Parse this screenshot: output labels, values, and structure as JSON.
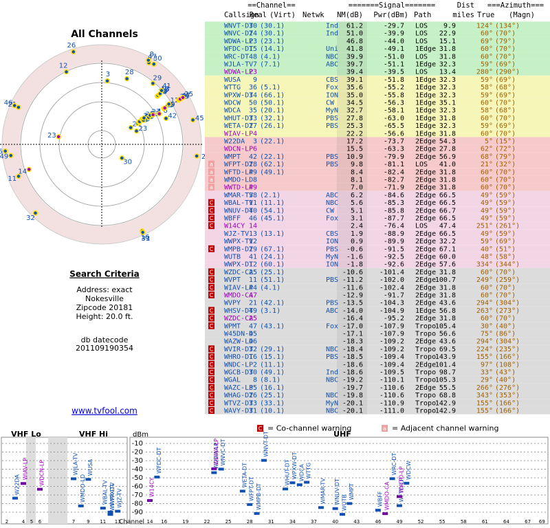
{
  "header": {
    "channel": "==Channel==",
    "signal": "=======Signal=======",
    "dist": "Dist",
    "azimuth": "===Azimuth===",
    "callsign": "Callsign",
    "real": "Real",
    "virt": "(Virt)",
    "netwk": "Netwk",
    "nm": "NM(dB)",
    "pwr": "Pwr(dBm)",
    "path": "Path",
    "miles": "miles",
    "true": "True",
    "magn": "(Magn)"
  },
  "left": {
    "title": "All Channels",
    "north": "TrueNorth",
    "n": "N",
    "criteria": "Search Criteria",
    "address": "Address: exact",
    "city": "Nokesville",
    "zip": "Zipcode 20181",
    "height": "Height: 20.0 ft.",
    "datecode_label": "db datecode",
    "datecode": "201109190354",
    "link": "www.tvfool.com"
  },
  "table": {
    "rows": [
      {
        "call": "WNVT-DT",
        "real": 30,
        "virt": "(30.1)",
        "net": "Ind",
        "nm": 61.2,
        "pwr": -29.7,
        "path": "LOS",
        "dist": 9.9,
        "az": "124°",
        "mag": "(134°)",
        "bg": "#c6f0c6",
        "fg": "#1050b0"
      },
      {
        "call": "WNVC-DT",
        "real": 24,
        "virt": "(30.1)",
        "net": "Ind",
        "nm": 51.0,
        "pwr": -39.9,
        "path": "LOS",
        "dist": 22.9,
        "az": "60°",
        "mag": "(70°)",
        "bg": "#c6f0c6",
        "fg": "#1050b0"
      },
      {
        "call": "WDWA-LP",
        "real": 23,
        "virt": "(23.1)",
        "nm": 46.8,
        "pwr": -44.0,
        "path": "LOS",
        "dist": 15.1,
        "az": "69°",
        "mag": "(79°)",
        "bg": "#c6f0c6",
        "fg": "#1050b0"
      },
      {
        "call": "WFDC-DT",
        "real": 15,
        "virt": "(14.1)",
        "net": "Uni",
        "nm": 41.8,
        "pwr": -49.1,
        "path": "1Edge",
        "dist": 31.8,
        "az": "60°",
        "mag": "(70°)",
        "bg": "#c6f0c6",
        "fg": "#1050b0"
      },
      {
        "call": "WRC-DT",
        "real": 48,
        "virt": "(4.1)",
        "net": "NBC",
        "nm": 39.9,
        "pwr": -51.0,
        "path": "LOS",
        "dist": 31.8,
        "az": "60°",
        "mag": "(70°)",
        "bg": "#c6f0c6",
        "fg": "#1050b0"
      },
      {
        "call": "WJLA-TV",
        "real": 7,
        "virt": "(7.1)",
        "net": "ABC",
        "nm": 39.7,
        "pwr": -51.1,
        "path": "1Edge",
        "dist": 32.3,
        "az": "59°",
        "mag": "(69°)",
        "bg": "#c6f0c6",
        "fg": "#1050b0"
      },
      {
        "call": "WDWA-LP",
        "real": 23,
        "nm": 39.4,
        "pwr": -39.5,
        "path": "LOS",
        "dist": 13.4,
        "az": "280°",
        "mag": "(290°)",
        "bg": "#c6f0c6",
        "fg": "#a000c0"
      },
      {
        "call": "WUSA",
        "real": 9,
        "net": "CBS",
        "nm": 39.1,
        "pwr": -51.8,
        "path": "1Edge",
        "dist": 32.3,
        "az": "59°",
        "mag": "(69°)",
        "bg": "#f6f6b8",
        "fg": "#1050b0"
      },
      {
        "call": "WTTG",
        "real": 36,
        "virt": "(5.1)",
        "net": "Fox",
        "nm": 35.6,
        "pwr": -55.2,
        "path": "1Edge",
        "dist": 32.3,
        "az": "58°",
        "mag": "(68°)",
        "bg": "#f6f6b8",
        "fg": "#1050b0"
      },
      {
        "call": "WPXW-DT",
        "real": 34,
        "virt": "(66.1)",
        "net": "ION",
        "nm": 35.0,
        "pwr": -55.8,
        "path": "1Edge",
        "dist": 32.3,
        "az": "59°",
        "mag": "(69°)",
        "bg": "#f6f6b8",
        "fg": "#1050b0"
      },
      {
        "call": "WDCW",
        "real": 50,
        "virt": "(50.1)",
        "net": "CW",
        "nm": 34.5,
        "pwr": -56.3,
        "path": "1Edge",
        "dist": 35.1,
        "az": "60°",
        "mag": "(70°)",
        "bg": "#f6f6b8",
        "fg": "#1050b0"
      },
      {
        "call": "WDCA",
        "real": 35,
        "virt": "(20.1)",
        "net": "MyN",
        "nm": 32.7,
        "pwr": -58.1,
        "path": "1Edge",
        "dist": 32.3,
        "az": "58°",
        "mag": "(68°)",
        "bg": "#f6f6b8",
        "fg": "#1050b0"
      },
      {
        "call": "WHUT-DT",
        "real": 33,
        "virt": "(32.1)",
        "net": "PBS",
        "nm": 27.8,
        "pwr": -63.0,
        "path": "1Edge",
        "dist": 31.8,
        "az": "60°",
        "mag": "(70°)",
        "bg": "#f6f6b8",
        "fg": "#1050b0"
      },
      {
        "call": "WETA-DT",
        "real": 27,
        "virt": "(26.1)",
        "net": "PBS",
        "nm": 25.3,
        "pwr": -65.5,
        "path": "1Edge",
        "dist": 32.3,
        "az": "59°",
        "mag": "(69°)",
        "bg": "#f6f6b8",
        "fg": "#1050b0"
      },
      {
        "call": "WIAV-LP",
        "real": 4,
        "nm": 22.2,
        "pwr": -56.6,
        "path": "1Edge",
        "dist": 31.8,
        "az": "60°",
        "mag": "(70°)",
        "bg": "#f6f6b8",
        "fg": "#a000c0"
      },
      {
        "call": "W22DA",
        "real": 3,
        "virt": "(22.1)",
        "nm": 17.2,
        "pwr": -73.7,
        "path": "2Edge",
        "dist": 54.3,
        "az": "5°",
        "mag": "(15°)",
        "bg": "#f6caca",
        "fg": "#1050b0"
      },
      {
        "call": "WDCN-LP",
        "real": 6,
        "nm": 15.5,
        "pwr": -63.3,
        "path": "2Edge",
        "dist": 27.8,
        "az": "62°",
        "mag": "(72°)",
        "bg": "#f6caca",
        "fg": "#a000c0"
      },
      {
        "call": "WMPT",
        "real": 42,
        "virt": "(22.1)",
        "net": "PBS",
        "nm": 10.9,
        "pwr": -79.9,
        "path": "2Edge",
        "dist": 56.9,
        "az": "68°",
        "mag": "(79°)",
        "bg": "#f6caca",
        "fg": "#1050b0"
      },
      {
        "call": "WFPT-DT",
        "real": 28,
        "virt": "(62.1)",
        "net": "PBS",
        "nm": 9.8,
        "pwr": -81.1,
        "path": "LOS",
        "dist": 41.0,
        "az": "21°",
        "mag": "(32°)",
        "bg": "#f6caca",
        "fg": "#1050b0",
        "warn": "a"
      },
      {
        "call": "WFTD-LP",
        "real": 49,
        "virt": "(49.1)",
        "nm": 8.4,
        "pwr": -82.4,
        "path": "2Edge",
        "dist": 31.8,
        "az": "60°",
        "mag": "(70°)",
        "bg": "#f6caca",
        "fg": "#1050b0",
        "warn": "a"
      },
      {
        "call": "WMDO-LD",
        "real": 8,
        "nm": 8.1,
        "pwr": -82.7,
        "path": "2Edge",
        "dist": 31.8,
        "az": "60°",
        "mag": "(70°)",
        "bg": "#f6caca",
        "fg": "#1050b0",
        "warn": "a"
      },
      {
        "call": "WWTD-LP",
        "real": 49,
        "nm": 7.0,
        "pwr": -71.9,
        "path": "2Edge",
        "dist": 31.8,
        "az": "60°",
        "mag": "(70°)",
        "bg": "#f6caca",
        "fg": "#a000c0",
        "warn": "a"
      },
      {
        "call": "WMAR-TV",
        "real": 38,
        "virt": "(2.1)",
        "net": "ABC",
        "nm": 6.2,
        "pwr": -84.6,
        "path": "2Edge",
        "dist": 66.5,
        "az": "49°",
        "mag": "(59°)",
        "bg": "#f2d6e6",
        "fg": "#1050b0"
      },
      {
        "call": "WBAL-TV",
        "real": 11,
        "virt": "(11.1)",
        "net": "NBC",
        "nm": 5.6,
        "pwr": -85.3,
        "path": "2Edge",
        "dist": 66.5,
        "az": "49°",
        "mag": "(59°)",
        "bg": "#f2d6e6",
        "fg": "#1050b0",
        "warn": "C"
      },
      {
        "call": "WNUV-DT",
        "real": 40,
        "virt": "(54.1)",
        "net": "CW",
        "nm": 5.1,
        "pwr": -85.8,
        "path": "2Edge",
        "dist": 66.7,
        "az": "49°",
        "mag": "(59°)",
        "bg": "#f2d6e6",
        "fg": "#1050b0",
        "warn": "C"
      },
      {
        "call": "WBFF",
        "real": 46,
        "virt": "(45.1)",
        "net": "Fox",
        "nm": 3.1,
        "pwr": -87.7,
        "path": "2Edge",
        "dist": 66.5,
        "az": "49°",
        "mag": "(59°)",
        "bg": "#f2d6e6",
        "fg": "#1050b0",
        "warn": "C"
      },
      {
        "call": "W14CY",
        "real": 14,
        "nm": 2.4,
        "pwr": -76.4,
        "path": "LOS",
        "dist": 47.4,
        "az": "251°",
        "mag": "(261°)",
        "bg": "#f2d6e6",
        "fg": "#a000c0",
        "warn": "C"
      },
      {
        "call": "WJZ-TV",
        "real": 13,
        "virt": "(13.1)",
        "net": "CBS",
        "nm": 1.9,
        "pwr": -88.9,
        "path": "2Edge",
        "dist": 66.5,
        "az": "49°",
        "mag": "(59°)",
        "bg": "#f2d6e6",
        "fg": "#1050b0"
      },
      {
        "call": "WWPX-TV",
        "real": 12,
        "net": "ION",
        "nm": 0.9,
        "pwr": -89.9,
        "path": "2Edge",
        "dist": 32.2,
        "az": "59°",
        "mag": "(69°)",
        "bg": "#f2d6e6",
        "fg": "#1050b0"
      },
      {
        "call": "WMPB-DT",
        "real": 29,
        "virt": "(67.1)",
        "net": "PBS",
        "nm": -0.6,
        "pwr": -91.5,
        "path": "2Edge",
        "dist": 67.1,
        "az": "40°",
        "mag": "(51°)",
        "bg": "#f2d6e6",
        "fg": "#1050b0",
        "warn": "C"
      },
      {
        "call": "WUTB",
        "real": 41,
        "virt": "(24.1)",
        "net": "MyN",
        "nm": -1.6,
        "pwr": -92.5,
        "path": "2Edge",
        "dist": 60.0,
        "az": "48°",
        "mag": "(58°)",
        "bg": "#f2d6e6",
        "fg": "#1050b0"
      },
      {
        "call": "WWPX-DT",
        "real": 12,
        "virt": "(60.1)",
        "net": "ION",
        "nm": -1.8,
        "pwr": -92.6,
        "path": "2Edge",
        "dist": 57.6,
        "az": "334°",
        "mag": "(344°)",
        "bg": "#f2d6e6",
        "fg": "#1050b0"
      },
      {
        "call": "WZDC-CA",
        "real": 25,
        "virt": "(25.1)",
        "nm": -10.6,
        "pwr": -101.4,
        "path": "2Edge",
        "dist": 31.8,
        "az": "60°",
        "mag": "(70°)",
        "bg": "#dcdcdc",
        "fg": "#1050b0",
        "warn": "C"
      },
      {
        "call": "WVPT",
        "real": 11,
        "virt": "(51.1)",
        "net": "PBS",
        "nm": -11.2,
        "pwr": -102.0,
        "path": "2Edge",
        "dist": 100.7,
        "az": "249°",
        "mag": "(259°)",
        "bg": "#dcdcdc",
        "fg": "#1050b0",
        "warn": "C"
      },
      {
        "call": "WIAV-LP",
        "real": 44,
        "virt": "(4.1)",
        "nm": -11.6,
        "pwr": -102.4,
        "path": "2Edge",
        "dist": 31.8,
        "az": "60°",
        "mag": "(70°)",
        "bg": "#dcdcdc",
        "fg": "#1050b0",
        "warn": "C"
      },
      {
        "call": "WMDO-CA",
        "real": 47,
        "nm": -12.9,
        "pwr": -91.7,
        "path": "2Edge",
        "dist": 31.8,
        "az": "60°",
        "mag": "(70°)",
        "bg": "#dcdcdc",
        "fg": "#a000c0",
        "warn": "C"
      },
      {
        "call": "WVPY",
        "real": 21,
        "virt": "(42.1)",
        "net": "PBS",
        "nm": -13.5,
        "pwr": -104.3,
        "path": "2Edge",
        "dist": 43.6,
        "az": "294°",
        "mag": "(304°)",
        "bg": "#dcdcdc",
        "fg": "#1050b0"
      },
      {
        "call": "WHSV-DT",
        "real": 49,
        "virt": "(3.1)",
        "net": "ABC",
        "nm": -14.0,
        "pwr": -104.9,
        "path": "1Edge",
        "dist": 56.8,
        "az": "263°",
        "mag": "(273°)",
        "bg": "#dcdcdc",
        "fg": "#1050b0",
        "warn": "C"
      },
      {
        "call": "WZDC-CA",
        "real": 25,
        "nm": -16.4,
        "pwr": -95.2,
        "path": "2Edge",
        "dist": 31.8,
        "az": "60°",
        "mag": "(70°)",
        "bg": "#dcdcdc",
        "fg": "#a000c0",
        "warn": "C"
      },
      {
        "call": "WPMT",
        "real": 47,
        "virt": "(43.1)",
        "net": "Fox",
        "nm": -17.0,
        "pwr": -107.9,
        "path": "Tropo",
        "dist": 105.4,
        "az": "30°",
        "mag": "(40°)",
        "bg": "#dcdcdc",
        "fg": "#1050b0",
        "warn": "C"
      },
      {
        "call": "W45DN-D",
        "real": 45,
        "nm": -17.1,
        "pwr": -107.9,
        "path": "Tropo",
        "dist": 56.6,
        "az": "75°",
        "mag": "(86°)",
        "bg": "#dcdcdc",
        "fg": "#1050b0"
      },
      {
        "call": "WAZW-LD",
        "real": 46,
        "nm": -18.3,
        "pwr": -109.2,
        "path": "2Edge",
        "dist": 43.6,
        "az": "294°",
        "mag": "(304°)",
        "bg": "#dcdcdc",
        "fg": "#1050b0"
      },
      {
        "call": "WVIR-DT",
        "real": 32,
        "virt": "(29.1)",
        "net": "NBC",
        "nm": -18.4,
        "pwr": -109.2,
        "path": "Tropo",
        "dist": 69.5,
        "az": "224°",
        "mag": "(235°)",
        "bg": "#dcdcdc",
        "fg": "#1050b0",
        "warn": "C"
      },
      {
        "call": "WHRO-DT",
        "real": 16,
        "virt": "(15.1)",
        "net": "PBS",
        "nm": -18.5,
        "pwr": -109.4,
        "path": "Tropo",
        "dist": 143.9,
        "az": "155°",
        "mag": "(166°)",
        "bg": "#dcdcdc",
        "fg": "#1050b0",
        "warn": "C"
      },
      {
        "call": "WNDC-LP",
        "real": 2,
        "virt": "(11.1)",
        "nm": -18.6,
        "pwr": -109.4,
        "path": "2Edge",
        "dist": 101.4,
        "az": "97°",
        "mag": "(108°)",
        "bg": "#dcdcdc",
        "fg": "#1050b0",
        "warn": "C"
      },
      {
        "call": "WGCB-DT",
        "real": 30,
        "virt": "(49.1)",
        "net": "Ind",
        "nm": -18.6,
        "pwr": -109.5,
        "path": "Tropo",
        "dist": 98.7,
        "az": "33°",
        "mag": "(43°)",
        "bg": "#dcdcdc",
        "fg": "#1050b0",
        "warn": "C"
      },
      {
        "call": "WGAL",
        "real": 8,
        "virt": "(8.1)",
        "net": "NBC",
        "nm": -19.2,
        "pwr": -110.1,
        "path": "Tropo",
        "dist": 105.3,
        "az": "29°",
        "mag": "(40°)",
        "bg": "#dcdcdc",
        "fg": "#1050b0",
        "warn": "C"
      },
      {
        "call": "WAZC-LP",
        "real": 35,
        "virt": "(16.1)",
        "nm": -19.7,
        "pwr": -110.6,
        "path": "2Edge",
        "dist": 55.5,
        "az": "266°",
        "mag": "(276°)",
        "bg": "#dcdcdc",
        "fg": "#1050b0",
        "warn": "C"
      },
      {
        "call": "WHAG-DT",
        "real": 26,
        "virt": "(25.1)",
        "net": "NBC",
        "nm": -19.8,
        "pwr": -110.6,
        "path": "Tropo",
        "dist": 68.8,
        "az": "343°",
        "mag": "(353°)",
        "bg": "#dcdcdc",
        "fg": "#1050b0",
        "warn": "C"
      },
      {
        "call": "WTVZ-DT",
        "real": 33,
        "virt": "(33.1)",
        "net": "MyN",
        "nm": -20.1,
        "pwr": -110.9,
        "path": "Tropo",
        "dist": 142.9,
        "az": "155°",
        "mag": "(166°)",
        "bg": "#dcdcdc",
        "fg": "#1050b0",
        "warn": "C"
      },
      {
        "call": "WAVY-DT",
        "real": 31,
        "virt": "(10.1)",
        "net": "NBC",
        "nm": -20.1,
        "pwr": -111.0,
        "path": "Tropo",
        "dist": 142.9,
        "az": "155°",
        "mag": "(166°)",
        "bg": "#dcdcdc",
        "fg": "#1050b0",
        "warn": "C"
      }
    ]
  },
  "spectrum": {
    "co_warn": "C",
    "co_text": "= Co-channel warning",
    "adj_warn": "a",
    "adj_text": "= Adjacent channel warning",
    "vhf_lo": "VHF Lo",
    "vhf_hi": "VHF Hi",
    "uhf": "UHF",
    "unit": "dBm",
    "channel": "Channel",
    "ylim": [
      -5,
      -95
    ],
    "yticks": [
      -10,
      -20,
      -30,
      -40,
      -50,
      -60,
      -70,
      -80,
      -90
    ],
    "vhf_ticks": [
      2,
      4,
      5,
      6,
      7,
      9,
      11,
      13
    ],
    "uhf_ticks": [
      14,
      16,
      19,
      22,
      25,
      28,
      31,
      34,
      37,
      40,
      43,
      46,
      49,
      52,
      55,
      58,
      61,
      64,
      67,
      69
    ]
  }
}
